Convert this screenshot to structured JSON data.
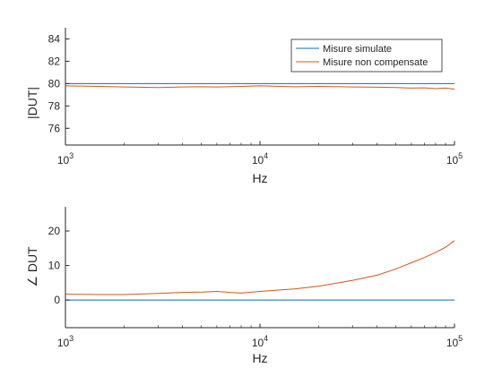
{
  "chart_data": [
    {
      "type": "line",
      "x_scale": "log",
      "xlim": [
        1000,
        100000
      ],
      "ylim": [
        74.5,
        85
      ],
      "ylabel": "|DUT|",
      "xlabel": "Hz",
      "x_ticks": [
        {
          "value": 1000,
          "base": "10",
          "exp": "3"
        },
        {
          "value": 10000,
          "base": "10",
          "exp": "4"
        },
        {
          "value": 100000,
          "base": "10",
          "exp": "5"
        }
      ],
      "y_ticks": [
        76,
        78,
        80,
        82,
        84
      ],
      "grid": false,
      "legend": {
        "placement": "top-right",
        "entries": [
          "Misure simulate",
          "Misure non compensate"
        ]
      },
      "series": [
        {
          "name": "Misure simulate",
          "color": "#0072bd",
          "x": [
            1000,
            100000
          ],
          "y": [
            80.0,
            80.0
          ]
        },
        {
          "name": "Misure non compensate",
          "color": "#d95319",
          "x": [
            1000,
            1500,
            2000,
            3000,
            4000,
            5000,
            6000,
            8000,
            10000,
            15000,
            20000,
            30000,
            40000,
            50000,
            60000,
            70000,
            80000,
            90000,
            100000
          ],
          "y": [
            79.8,
            79.75,
            79.7,
            79.65,
            79.7,
            79.72,
            79.7,
            79.75,
            79.8,
            79.72,
            79.75,
            79.7,
            79.68,
            79.65,
            79.6,
            79.62,
            79.55,
            79.6,
            79.5
          ]
        }
      ]
    },
    {
      "type": "line",
      "x_scale": "log",
      "xlim": [
        1000,
        100000
      ],
      "ylim": [
        -8,
        27
      ],
      "ylabel": "∠ DUT",
      "xlabel": "Hz",
      "x_ticks": [
        {
          "value": 1000,
          "base": "10",
          "exp": "3"
        },
        {
          "value": 10000,
          "base": "10",
          "exp": "4"
        },
        {
          "value": 100000,
          "base": "10",
          "exp": "5"
        }
      ],
      "y_ticks": [
        0,
        10,
        20
      ],
      "grid": false,
      "series": [
        {
          "name": "",
          "color": "#0072bd",
          "x": [
            1000,
            100000
          ],
          "y": [
            0,
            0
          ]
        },
        {
          "name": "",
          "color": "#d95319",
          "x": [
            1000,
            1500,
            2000,
            3000,
            4000,
            5000,
            6000,
            7000,
            8000,
            10000,
            15000,
            20000,
            30000,
            40000,
            50000,
            60000,
            70000,
            80000,
            90000,
            100000
          ],
          "y": [
            1.7,
            1.6,
            1.6,
            1.9,
            2.2,
            2.3,
            2.5,
            2.2,
            2.0,
            2.5,
            3.2,
            4.0,
            5.7,
            7.2,
            9.0,
            10.8,
            12.3,
            13.8,
            15.3,
            17.2
          ]
        }
      ]
    }
  ]
}
